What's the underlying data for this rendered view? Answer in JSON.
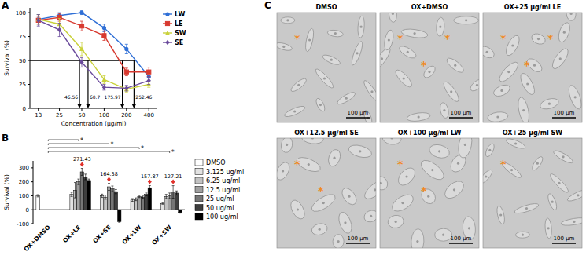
{
  "chart_data": [
    {
      "type": "line",
      "title": "A",
      "x_label": "Concentration (μg/ml)",
      "y_label": "Survival (%)",
      "log": "x",
      "x": [
        13,
        25,
        50,
        100,
        200,
        400
      ],
      "xlim": [
        10,
        520
      ],
      "xticks": [
        13,
        25,
        50,
        100,
        200,
        400
      ],
      "ylim": [
        0,
        105
      ],
      "yticks": [
        0,
        25,
        50,
        75,
        100
      ],
      "legend": "right",
      "series": [
        {
          "name": "LW",
          "color": "#2f6fd6",
          "marker": "circle",
          "values": [
            93,
            97,
            100,
            84,
            62,
            33
          ],
          "errors": [
            5,
            3,
            2,
            4,
            5,
            4
          ]
        },
        {
          "name": "LE",
          "color": "#d7392f",
          "marker": "square",
          "values": [
            92,
            95,
            86,
            76,
            38,
            38
          ],
          "errors": [
            4,
            4,
            5,
            5,
            4,
            5
          ]
        },
        {
          "name": "SW",
          "color": "#c9d13a",
          "marker": "triangle",
          "values": [
            93,
            88,
            62,
            30,
            20,
            25
          ],
          "errors": [
            5,
            6,
            7,
            4,
            3,
            3
          ]
        },
        {
          "name": "SE",
          "color": "#6a4a9c",
          "marker": "diamond",
          "values": [
            92,
            82,
            48,
            22,
            21,
            29
          ],
          "errors": [
            6,
            7,
            5,
            3,
            3,
            4
          ]
        }
      ],
      "hline": 50,
      "drops": [
        {
          "x": 46.56,
          "label": "46.56"
        },
        {
          "x": 60.7,
          "label": "60.7"
        },
        {
          "x": 175.97,
          "label": "175.97"
        },
        {
          "x": 252.46,
          "label": "252.46"
        }
      ]
    },
    {
      "type": "bar",
      "title": "B",
      "y_label": "Survival (%)",
      "categories": [
        "OX+DMSO",
        "OX+LE",
        "OX+SE",
        "OX+LW",
        "OX+SW"
      ],
      "ylim": [
        -100,
        350
      ],
      "yticks": [
        -100,
        0,
        100,
        200,
        300
      ],
      "legend": "right",
      "series": [
        {
          "name": "DMSO",
          "color": "#ffffff",
          "values": [
            100,
            null,
            null,
            null,
            null
          ],
          "errors": [
            8,
            null,
            null,
            null,
            null
          ]
        },
        {
          "name": "3.125 ug/ml",
          "color": "#e2e2e2",
          "values": [
            null,
            110,
            100,
            70,
            45
          ],
          "errors": [
            null,
            15,
            12,
            10,
            6
          ]
        },
        {
          "name": "6.25 ug/ml",
          "color": "#c2c2c2",
          "values": [
            null,
            140,
            90,
            75,
            95
          ],
          "errors": [
            null,
            55,
            15,
            10,
            15
          ]
        },
        {
          "name": "12.5 ug/ml",
          "color": "#a0a0a0",
          "values": [
            null,
            200,
            164.38,
            95,
            100
          ],
          "errors": [
            null,
            20,
            25,
            8,
            20
          ]
        },
        {
          "name": "25 ug/ml",
          "color": "#767676",
          "values": [
            null,
            271.43,
            150,
            90,
            127.21
          ],
          "errors": [
            null,
            25,
            20,
            8,
            45
          ]
        },
        {
          "name": "50 ug/ml",
          "color": "#3e3e3e",
          "values": [
            null,
            235,
            130,
            110,
            120
          ],
          "errors": [
            null,
            20,
            15,
            10,
            15
          ]
        },
        {
          "name": "100 ug/ml",
          "color": "#000000",
          "values": [
            null,
            210,
            -85,
            157.87,
            -20
          ],
          "errors": [
            null,
            10,
            5,
            15,
            5
          ]
        }
      ],
      "highlights": [
        {
          "category": "OX+LE",
          "series": "25 ug/ml",
          "label": "271.43"
        },
        {
          "category": "OX+SE",
          "series": "12.5 ug/ml",
          "label": "164.38"
        },
        {
          "category": "OX+LW",
          "series": "100 ug/ml",
          "label": "157.87"
        },
        {
          "category": "OX+SW",
          "series": "25 ug/ml",
          "label": "127.21"
        }
      ],
      "brackets": [
        {
          "from": "OX+DMSO",
          "to": "OX+LE",
          "label": "*"
        },
        {
          "from": "OX+DMSO",
          "to": "OX+SE",
          "label": "*"
        },
        {
          "from": "OX+DMSO",
          "to": "OX+LW",
          "label": "*"
        },
        {
          "from": "OX+DMSO",
          "to": "OX+SW",
          "label": "*"
        }
      ]
    }
  ],
  "images": {
    "title": "C",
    "tiles": [
      {
        "title": "DMSO",
        "scale_bar": "100 μm",
        "markers": [
          "*"
        ]
      },
      {
        "title": "OX+DMSO",
        "scale_bar": "100 μm",
        "markers": [
          "*",
          "*",
          "*"
        ]
      },
      {
        "title": "OX+25 μg/ml LE",
        "scale_bar": "100 μm",
        "markers": [
          "*",
          "*",
          "*"
        ]
      },
      {
        "title": "OX+12.5 μg/ml SE",
        "scale_bar": "100 μm",
        "markers": [
          "*",
          "*"
        ]
      },
      {
        "title": "OX+100 μg/ml LW",
        "scale_bar": "100 μm",
        "markers": [
          "*",
          "*"
        ]
      },
      {
        "title": "OX+25 μg/ml SW",
        "scale_bar": "100 μm",
        "markers": [
          "*"
        ]
      }
    ]
  }
}
